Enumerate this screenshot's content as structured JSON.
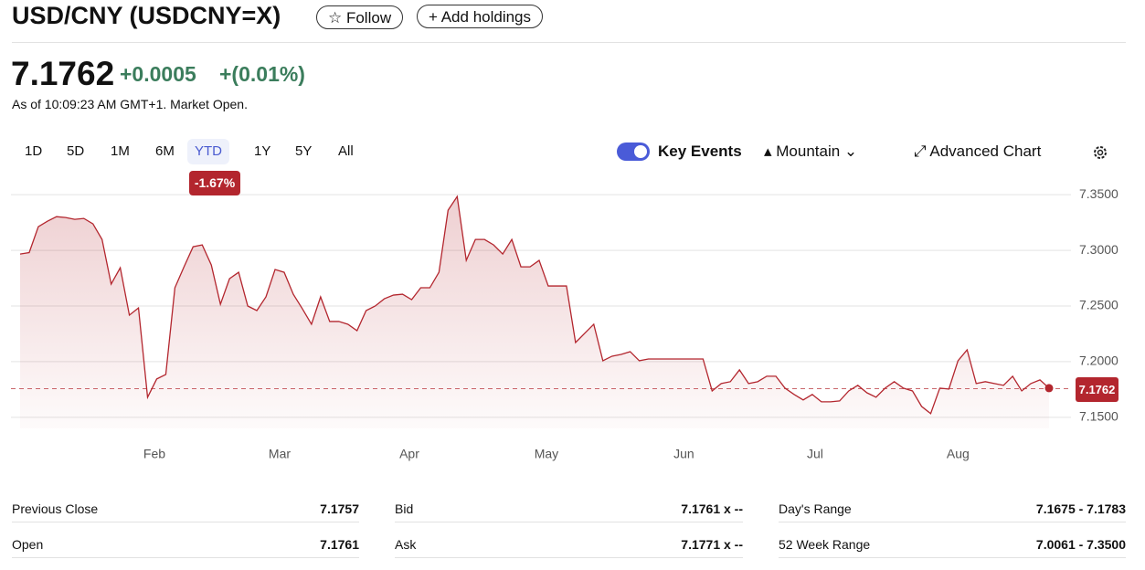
{
  "header": {
    "title": "USD/CNY (USDCNY=X)",
    "follow": "Follow",
    "add_holdings": "Add holdings"
  },
  "quote": {
    "price": "7.1762",
    "change": "+0.0005",
    "change_percent": "+(0.01%)",
    "as_of": "As of 10:09:23 AM GMT+1. Market Open."
  },
  "ranges": {
    "items": [
      "1D",
      "5D",
      "1M",
      "6M",
      "YTD",
      "1Y",
      "5Y",
      "All"
    ],
    "active": 4,
    "active_change": "-1.67%"
  },
  "toolbar": {
    "key_events": "Key Events",
    "chart_type": "Mountain",
    "advanced": "Advanced Chart"
  },
  "chart_data": {
    "type": "area",
    "color": "#b3262e",
    "values": [
      7.2967,
      7.298,
      7.3213,
      7.3262,
      7.3303,
      7.3295,
      7.3279,
      7.3287,
      7.3238,
      7.3098,
      7.2697,
      7.2844,
      7.2418,
      7.2483,
      7.168,
      7.1844,
      7.1885,
      7.2664,
      7.2852,
      7.3033,
      7.3049,
      7.2869,
      7.2516,
      7.2746,
      7.2803,
      7.25,
      7.2459,
      7.2582,
      7.2828,
      7.2803,
      7.2606,
      7.2475,
      7.2336,
      7.2582,
      7.2361,
      7.2361,
      7.2336,
      7.2278,
      7.2459,
      7.25,
      7.2565,
      7.2598,
      7.2606,
      7.2557,
      7.2664,
      7.2664,
      7.2803,
      7.3361,
      7.3484,
      7.291,
      7.3098,
      7.3098,
      7.3049,
      7.2967,
      7.3098,
      7.2852,
      7.2852,
      7.291,
      7.268,
      7.268,
      7.268,
      7.2172,
      7.2254,
      7.2336,
      7.2008,
      7.2049,
      7.2065,
      7.209,
      7.2008,
      7.2024,
      7.2024,
      7.2024,
      7.2024,
      7.2024,
      7.2024,
      7.2024,
      7.1737,
      7.1803,
      7.182,
      7.1926,
      7.1803,
      7.182,
      7.1869,
      7.1869,
      7.1762,
      7.1705,
      7.1656,
      7.1705,
      7.1639,
      7.1639,
      7.1647,
      7.1737,
      7.1787,
      7.172,
      7.168,
      7.1762,
      7.182,
      7.1762,
      7.1737,
      7.1598,
      7.1533,
      7.1762,
      7.1754,
      7.2008,
      7.2106,
      7.1803,
      7.182,
      7.1803,
      7.1787,
      7.1869,
      7.1737,
      7.1803,
      7.1836,
      7.1762
    ],
    "xlim": [
      0,
      113
    ],
    "xticks": [
      {
        "value": 14.75,
        "label": "Feb"
      },
      {
        "value": 28.5,
        "label": "Mar"
      },
      {
        "value": 42.75,
        "label": "Apr"
      },
      {
        "value": 57.8,
        "label": "May"
      },
      {
        "value": 72.9,
        "label": "Jun"
      },
      {
        "value": 87.3,
        "label": "Jul"
      },
      {
        "value": 103,
        "label": "Aug"
      }
    ],
    "ylim": [
      7.14,
      7.36
    ],
    "yticks": [
      {
        "value": 7.35,
        "label": "7.3500"
      },
      {
        "value": 7.3,
        "label": "7.3000"
      },
      {
        "value": 7.25,
        "label": "7.2500"
      },
      {
        "value": 7.2,
        "label": "7.2000"
      },
      {
        "value": 7.15,
        "label": "7.1500"
      }
    ],
    "grid": true,
    "previous_close": 7.1757
  },
  "stats": [
    {
      "label": "Previous Close",
      "value": "7.1757"
    },
    {
      "label": "Bid",
      "value": "7.1761 x --"
    },
    {
      "label": "Day's Range",
      "value": "7.1675 - 7.1783"
    },
    {
      "label": "Open",
      "value": "7.1761"
    },
    {
      "label": "Ask",
      "value": "7.1771 x --"
    },
    {
      "label": "52 Week Range",
      "value": "7.0061 - 7.3500"
    }
  ]
}
